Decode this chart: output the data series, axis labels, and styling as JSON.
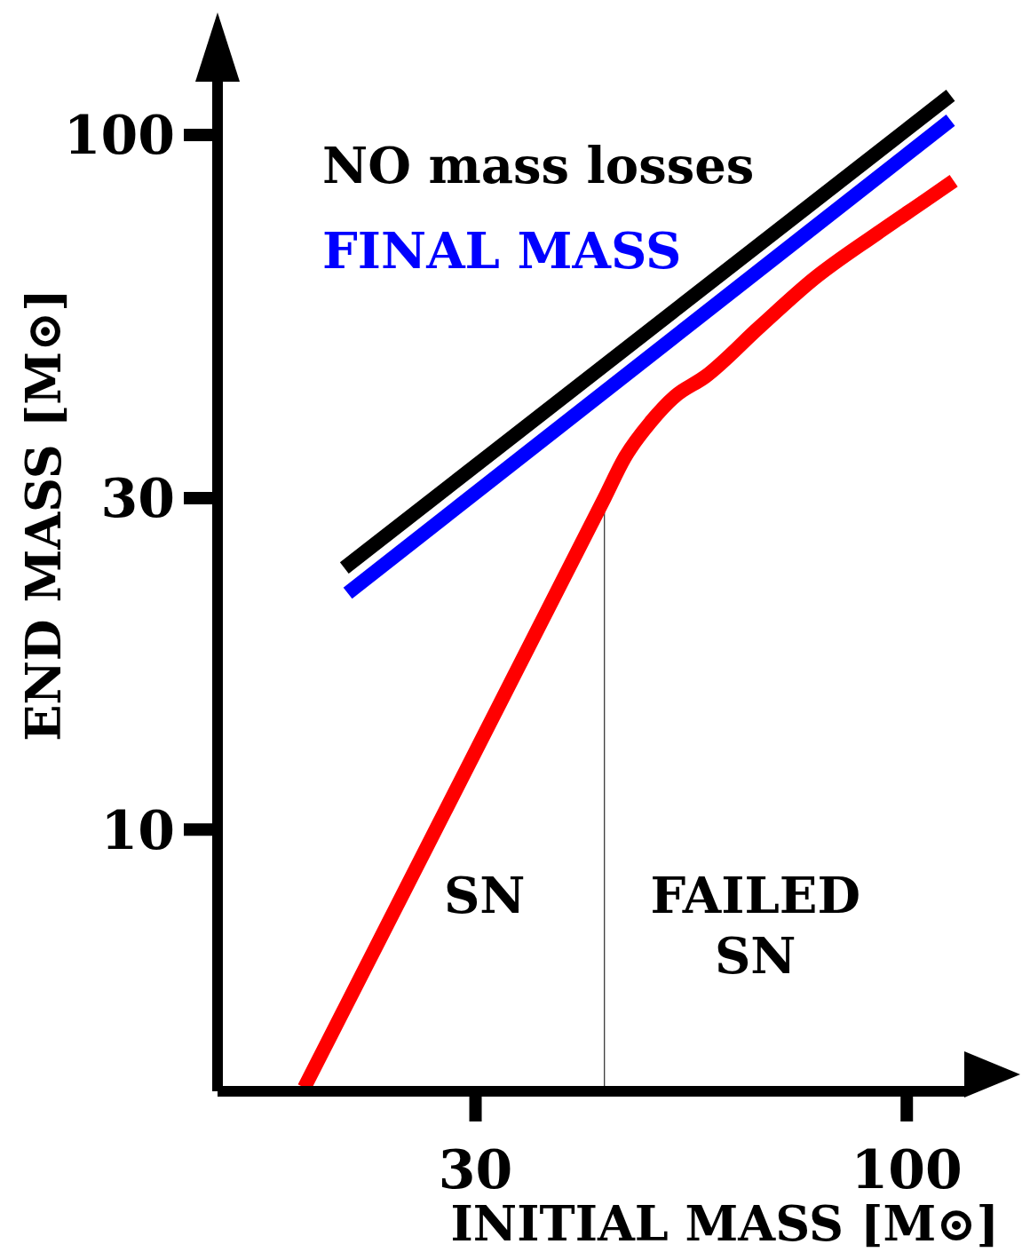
{
  "chart_data": {
    "type": "line",
    "xlabel": "INITIAL MASS [M⊙]",
    "ylabel": "END MASS [M⊙]",
    "log": "xy",
    "xlim": [
      14.6,
      118
    ],
    "xticks": [
      30,
      100
    ],
    "ylim": [
      4.2,
      120
    ],
    "yticks": [
      10,
      30,
      100
    ],
    "grid": false,
    "legend": "top left",
    "marker": "none",
    "line_style": "solid",
    "series": [
      {
        "name": "NO mass losses",
        "color": "#000000",
        "x": [
          20.8,
          113
        ],
        "values": [
          23.8,
          114
        ]
      },
      {
        "name": "FINAL MASS",
        "color": "#0000ff",
        "x": [
          21,
          113
        ],
        "values": [
          21.9,
          105
        ]
      },
      {
        "color": "#ff0000",
        "x": [
          18.6,
          43,
          45.5,
          49,
          52.3,
          57,
          66.3,
          77.2,
          92,
          105.5,
          114
        ],
        "values": [
          4.25,
          30,
          34.3,
          38.7,
          42,
          44.9,
          52.9,
          62.1,
          72.1,
          80.6,
          85.9
        ]
      }
    ],
    "ref_lines": [
      {
        "axis": "x",
        "value": 43,
        "color": "#000000"
      }
    ],
    "annotations": [
      "SN",
      "FAILED SN"
    ]
  }
}
